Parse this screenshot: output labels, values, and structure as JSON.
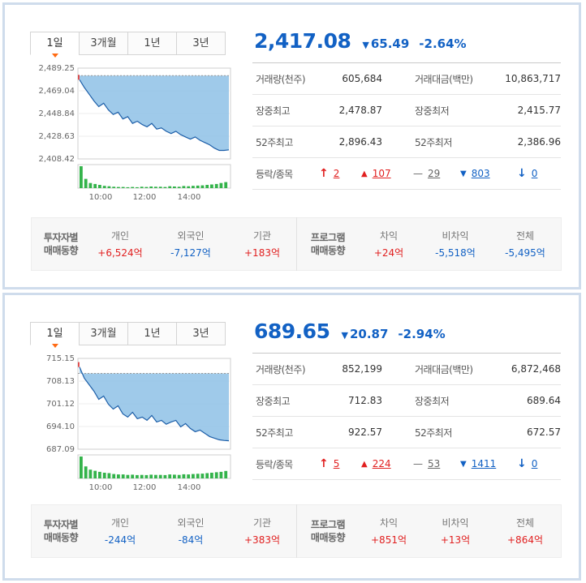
{
  "panels": [
    {
      "tabs": [
        "1일",
        "3개월",
        "1년",
        "3년"
      ],
      "active_tab": 0,
      "price": "2,417.08",
      "change": "65.49",
      "change_pct": "-2.64%",
      "stats": [
        [
          {
            "label": "거래량(천주)",
            "value": "605,684"
          },
          {
            "label": "거래대금(백만)",
            "value": "10,863,717"
          }
        ],
        [
          {
            "label": "장중최고",
            "value": "2,478.87"
          },
          {
            "label": "장중최저",
            "value": "2,415.77"
          }
        ],
        [
          {
            "label": "52주최고",
            "value": "2,896.43"
          },
          {
            "label": "52주최저",
            "value": "2,386.96"
          }
        ]
      ],
      "advance_decline": {
        "label": "등락/종목",
        "upper_limit": "2",
        "up": "107",
        "flat": "29",
        "down": "803",
        "lower_limit": "0"
      },
      "chart_data": {
        "type": "area",
        "y_ticks": [
          "2,489.25",
          "2,469.04",
          "2,448.84",
          "2,428.63",
          "2,408.42"
        ],
        "x_ticks": [
          "10:00",
          "12:00",
          "14:00"
        ],
        "ylim": [
          2408.42,
          2489.25
        ],
        "prev_close": 2482.57,
        "values": [
          2478.9,
          2472.0,
          2466.0,
          2460.0,
          2455.0,
          2458.0,
          2452.0,
          2448.0,
          2450.0,
          2444.0,
          2446.0,
          2440.0,
          2442.0,
          2439.0,
          2437.0,
          2440.0,
          2435.0,
          2436.0,
          2433.0,
          2431.0,
          2433.0,
          2430.0,
          2428.0,
          2426.0,
          2428.0,
          2425.0,
          2423.0,
          2421.0,
          2418.0,
          2416.0,
          2416.0,
          2416.5
        ],
        "volume": [
          95,
          40,
          22,
          18,
          14,
          10,
          8,
          6,
          5,
          5,
          4,
          5,
          4,
          6,
          5,
          7,
          6,
          6,
          5,
          8,
          7,
          6,
          9,
          8,
          10,
          11,
          12,
          14,
          16,
          18,
          22,
          26
        ]
      },
      "investor": {
        "title1": "투자자별",
        "title2": "매매동향",
        "cols": [
          {
            "label": "개인",
            "value": "+6,524억",
            "color": "red"
          },
          {
            "label": "외국인",
            "value": "-7,127억",
            "color": "blue"
          },
          {
            "label": "기관",
            "value": "+183억",
            "color": "red"
          }
        ]
      },
      "program": {
        "title1": "프로그램",
        "title2": "매매동향",
        "cols": [
          {
            "label": "차익",
            "value": "+24억",
            "color": "red"
          },
          {
            "label": "비차익",
            "value": "-5,518억",
            "color": "blue"
          },
          {
            "label": "전체",
            "value": "-5,495억",
            "color": "blue"
          }
        ]
      }
    },
    {
      "tabs": [
        "1일",
        "3개월",
        "1년",
        "3년"
      ],
      "active_tab": 0,
      "price": "689.65",
      "change": "20.87",
      "change_pct": "-2.94%",
      "stats": [
        [
          {
            "label": "거래량(천주)",
            "value": "852,199"
          },
          {
            "label": "거래대금(백만)",
            "value": "6,872,468"
          }
        ],
        [
          {
            "label": "장중최고",
            "value": "712.83"
          },
          {
            "label": "장중최저",
            "value": "689.64"
          }
        ],
        [
          {
            "label": "52주최고",
            "value": "922.57"
          },
          {
            "label": "52주최저",
            "value": "672.57"
          }
        ]
      ],
      "advance_decline": {
        "label": "등락/종목",
        "upper_limit": "5",
        "up": "224",
        "flat": "53",
        "down": "1411",
        "lower_limit": "0"
      },
      "chart_data": {
        "type": "area",
        "y_ticks": [
          "715.15",
          "708.13",
          "701.12",
          "694.10",
          "687.09"
        ],
        "x_ticks": [
          "10:00",
          "12:00",
          "14:00"
        ],
        "ylim": [
          687.09,
          715.15
        ],
        "prev_close": 710.52,
        "values": [
          712.5,
          709.0,
          707.0,
          705.0,
          702.5,
          703.5,
          701.0,
          699.5,
          700.5,
          698.0,
          697.0,
          698.5,
          696.5,
          697.0,
          696.0,
          697.5,
          695.5,
          696.0,
          694.8,
          695.5,
          696.0,
          694.0,
          695.0,
          693.5,
          692.5,
          693.0,
          692.0,
          691.0,
          690.5,
          690.0,
          689.8,
          689.7
        ],
        "volume": [
          100,
          55,
          40,
          35,
          30,
          26,
          24,
          20,
          18,
          18,
          16,
          17,
          15,
          16,
          15,
          17,
          16,
          16,
          15,
          18,
          17,
          16,
          19,
          18,
          20,
          21,
          22,
          24,
          26,
          28,
          30,
          34
        ]
      },
      "investor": {
        "title1": "투자자별",
        "title2": "매매동향",
        "cols": [
          {
            "label": "개인",
            "value": "-244억",
            "color": "blue"
          },
          {
            "label": "외국인",
            "value": "-84억",
            "color": "blue"
          },
          {
            "label": "기관",
            "value": "+383억",
            "color": "red"
          }
        ]
      },
      "program": {
        "title1": "프로그램",
        "title2": "매매동향",
        "cols": [
          {
            "label": "차익",
            "value": "+851억",
            "color": "red"
          },
          {
            "label": "비차익",
            "value": "+13억",
            "color": "red"
          },
          {
            "label": "전체",
            "value": "+864억",
            "color": "red"
          }
        ]
      }
    }
  ]
}
